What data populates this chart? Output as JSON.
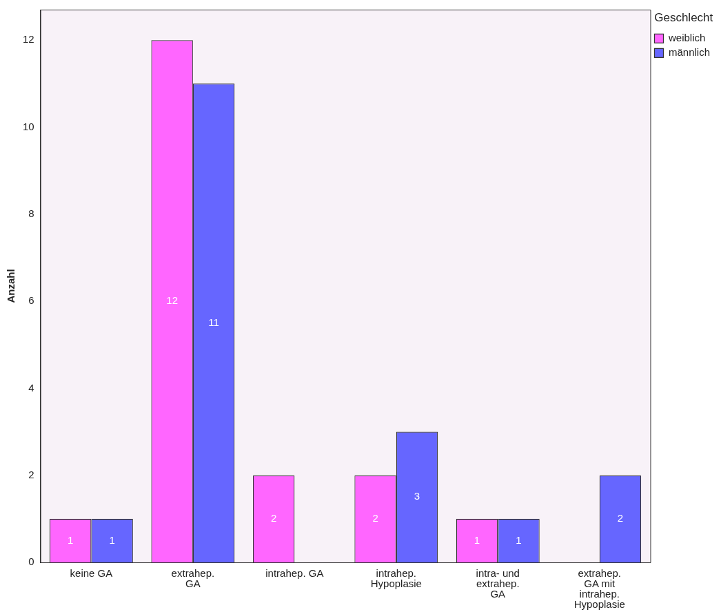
{
  "chart_data": {
    "type": "bar",
    "ylabel": "Anzahl",
    "legend_title": "Geschlecht",
    "legend": "top right",
    "categories": [
      "keine GA",
      "extrahep.\nGA",
      "intrahep. GA",
      "intrahep.\nHypoplasie",
      "intra- und\nextrahep.\nGA",
      "extrahep.\nGA mit\nintrahep.\nHypoplasie"
    ],
    "series": [
      {
        "name": "weiblich",
        "color": "#ff66ff",
        "values": [
          1,
          12,
          2,
          2,
          1,
          null
        ]
      },
      {
        "name": "männlich",
        "color": "#6666ff",
        "values": [
          1,
          11,
          null,
          3,
          1,
          2
        ]
      }
    ],
    "ylim": [
      0,
      12.7
    ],
    "yticks": [
      0,
      2,
      4,
      6,
      8,
      10,
      12
    ],
    "grid": false,
    "data_labels": true
  }
}
